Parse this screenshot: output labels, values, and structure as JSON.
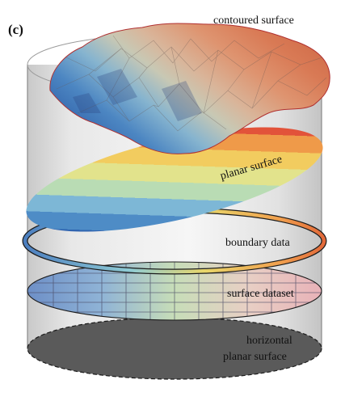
{
  "figure": {
    "panel_label": "(c)",
    "layers": {
      "contoured": {
        "label": "contoured surface"
      },
      "planar": {
        "label": "planar surface"
      },
      "boundary": {
        "label": "boundary data"
      },
      "dataset": {
        "label": "surface dataset"
      },
      "horizontal": {
        "label_line1": "horizontal",
        "label_line2": "planar surface"
      }
    },
    "colors": {
      "ramp": [
        "#2f64b0",
        "#5d9bd0",
        "#8fc4d8",
        "#cfe6a0",
        "#f1d86a",
        "#f0a04e",
        "#e35a3a",
        "#c8202a"
      ],
      "cylinder_edge": "#8a8a8a",
      "base_fill": "#5a5a5a",
      "boundary_outline": "#1c1c1c"
    }
  }
}
